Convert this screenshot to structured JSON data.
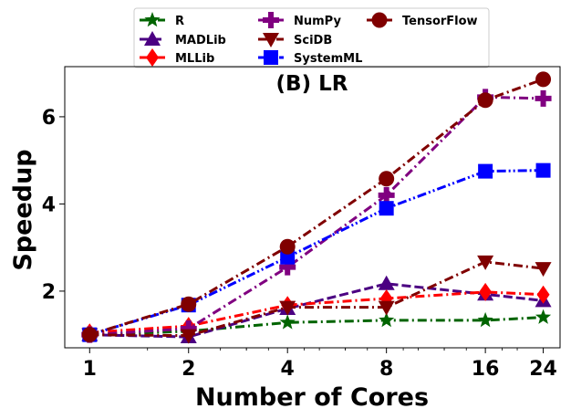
{
  "chart_data": {
    "type": "line",
    "title": "(B) LR",
    "xlabel": "Number of Cores",
    "ylabel": "Speedup",
    "x": [
      1,
      2,
      4,
      8,
      16,
      24
    ],
    "x_tick_labels": [
      "1",
      "2",
      "4",
      "8",
      "16",
      "24"
    ],
    "x_scale": "log2",
    "xlim": [
      0.84,
      27
    ],
    "ylim": [
      0.7,
      7.15
    ],
    "y_ticks": [
      2,
      4,
      6
    ],
    "y_tick_labels": [
      "2",
      "4",
      "6"
    ],
    "grid": false,
    "legend_position": "top, outside plot, 3 columns",
    "series": [
      {
        "name": "R",
        "color": "#006400",
        "marker": "star",
        "linestyle": "dashdot",
        "values": [
          1.0,
          1.08,
          1.28,
          1.33,
          1.33,
          1.4
        ]
      },
      {
        "name": "MADLib",
        "color": "#4b0082",
        "marker": "triangle-up",
        "linestyle": "dashed",
        "values": [
          1.0,
          0.95,
          1.6,
          2.17,
          1.93,
          1.78
        ]
      },
      {
        "name": "MLLib",
        "color": "#ff0000",
        "marker": "diamond",
        "linestyle": "dashdot",
        "values": [
          1.05,
          1.2,
          1.68,
          1.83,
          1.98,
          1.92
        ]
      },
      {
        "name": "NumPy",
        "color": "#800080",
        "marker": "plus",
        "linestyle": "dashdot",
        "values": [
          1.0,
          1.14,
          2.55,
          4.2,
          6.45,
          6.42
        ]
      },
      {
        "name": "SciDB",
        "color": "#800000",
        "marker": "triangle-down",
        "linestyle": "dashdot",
        "values": [
          1.0,
          0.98,
          1.63,
          1.63,
          2.67,
          2.52
        ]
      },
      {
        "name": "SystemML",
        "color": "#0000ff",
        "marker": "square",
        "linestyle": "dashdotdot",
        "values": [
          1.0,
          1.68,
          2.78,
          3.9,
          4.75,
          4.77
        ]
      },
      {
        "name": "TensorFlow",
        "color": "#800000",
        "marker": "circle",
        "linestyle": "dashdot",
        "values": [
          1.0,
          1.7,
          3.02,
          4.58,
          6.38,
          6.86
        ]
      }
    ]
  }
}
